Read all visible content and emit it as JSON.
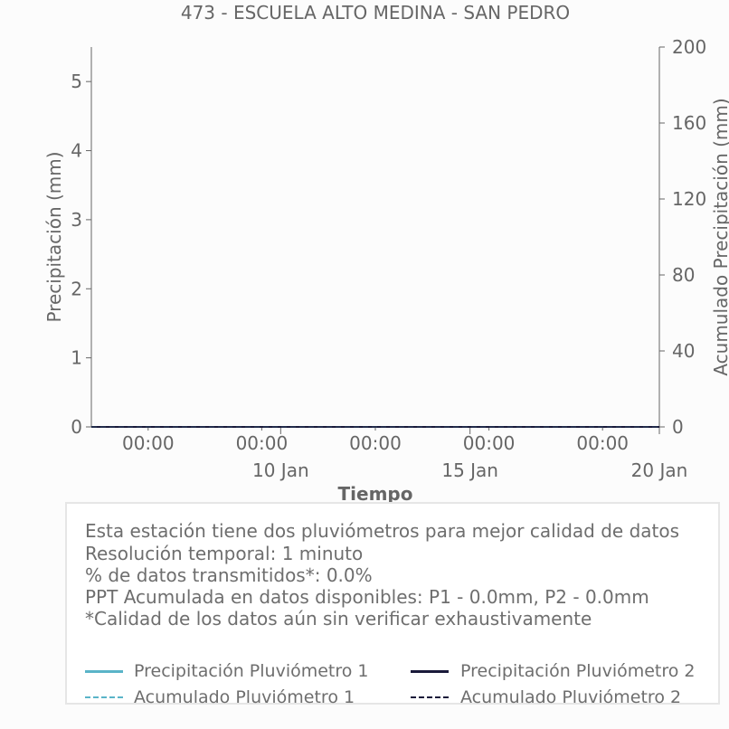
{
  "chart_data": {
    "type": "line",
    "title": "473 - ESCUELA ALTO MEDINA - SAN PEDRO",
    "xlabel": "Tiempo",
    "ylabel": "Precipitación (mm)",
    "y2label": "Acumulado Precipitación (mm)",
    "ylim": [
      0,
      5.5
    ],
    "y2lim": [
      0,
      200
    ],
    "yticks": [
      "0",
      "1",
      "2",
      "3",
      "4",
      "5"
    ],
    "y2ticks": [
      "0",
      "40",
      "80",
      "120",
      "160",
      "200"
    ],
    "x_range": [
      "2024-01-06T00:00",
      "2024-01-21T00:00"
    ],
    "x_minor_ticks": [
      "00:00",
      "00:00",
      "00:00",
      "00:00",
      "00:00"
    ],
    "x_major_ticks": [
      "10 Jan",
      "15 Jan",
      "20 Jan"
    ],
    "grid": false,
    "series": [
      {
        "name": "Precipitación Pluviómetro 1",
        "axis": "left",
        "style": "solid",
        "color": "#5ab4c8",
        "x": [
          "2024-01-06T00:00",
          "2024-01-21T00:00"
        ],
        "values": [
          0,
          0
        ]
      },
      {
        "name": "Precipitación Pluviómetro 2",
        "axis": "left",
        "style": "solid",
        "color": "#1a1a3a",
        "x": [
          "2024-01-06T00:00",
          "2024-01-21T00:00"
        ],
        "values": [
          0,
          0
        ]
      },
      {
        "name": "Acumulado Pluviómetro 1",
        "axis": "right",
        "style": "dashed",
        "color": "#5ab4c8",
        "x": [
          "2024-01-06T00:00",
          "2024-01-21T00:00"
        ],
        "values": [
          0,
          0
        ]
      },
      {
        "name": "Acumulado Pluviómetro 2",
        "axis": "right",
        "style": "dashed",
        "color": "#1a1a3a",
        "x": [
          "2024-01-06T00:00",
          "2024-01-21T00:00"
        ],
        "values": [
          0,
          0
        ]
      }
    ]
  },
  "info": {
    "line1": "Esta estación tiene dos pluviómetros para mejor calidad de datos",
    "line2": "Resolución temporal: 1 minuto",
    "line3": "% de datos transmitidos*: 0.0%",
    "line4": "PPT Acumulada en datos disponibles: P1 - 0.0mm, P2 - 0.0mm",
    "line5": "*Calidad de los datos aún sin verificar exhaustivamente"
  },
  "legend": {
    "p1": "Precipitación Pluviómetro 1",
    "p2": "Precipitación Pluviómetro 2",
    "a1": "Acumulado Pluviómetro 1",
    "a2": "Acumulado Pluviómetro 2",
    "color_p1": "#5ab4c8",
    "color_p2": "#1a1a3a"
  }
}
